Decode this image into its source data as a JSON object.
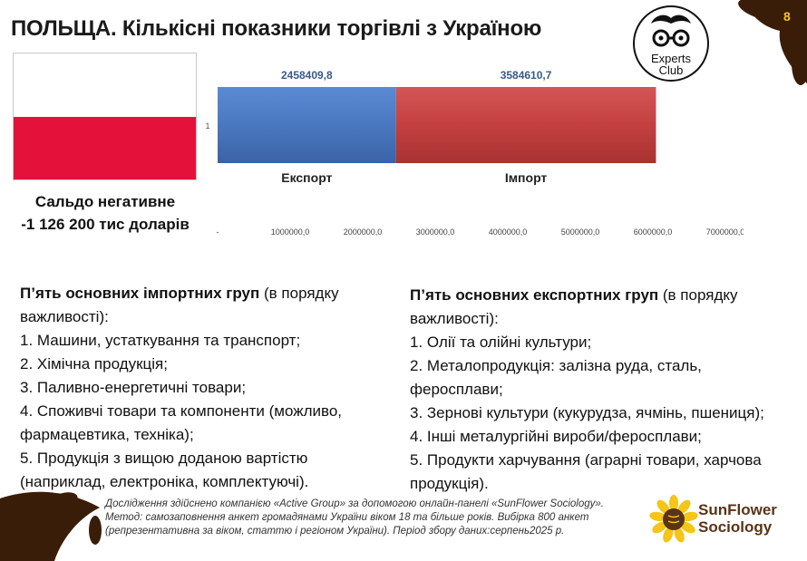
{
  "title": "ПОЛЬЩА. Кількісні показники торгівлі з Україною",
  "page_number": "8",
  "logo": {
    "line1": "Experts",
    "line2": "Club"
  },
  "colors": {
    "export": "#4a78c0",
    "import": "#c44040",
    "flag_red": "#e4123b",
    "brand_brown": "#5a3416",
    "accent_yellow": "#f5c518"
  },
  "saldo": {
    "line1": "Сальдо негативне",
    "line2": "-1 126 200 тис доларів"
  },
  "chart_data": {
    "type": "bar",
    "orientation": "horizontal-stacked",
    "categories": [
      "1"
    ],
    "series": [
      {
        "name": "Експорт",
        "values": [
          2458409.8
        ],
        "label": "2458409,8"
      },
      {
        "name": "Імпорт",
        "values": [
          3584610.7
        ],
        "label": "3584610,7"
      }
    ],
    "xlim": [
      0,
      7000000
    ],
    "xticks": [
      "-",
      "1000000,0",
      "2000000,0",
      "3000000,0",
      "4000000,0",
      "5000000,0",
      "6000000,0",
      "7000000,0"
    ],
    "grid": false
  },
  "import_groups": {
    "heading": "П’ять основних імпортних груп",
    "heading_suffix": " (в порядку важливості):",
    "lines": [
      "1. Машини, устаткування та транспорт;",
      "2. Хімічна продукція;",
      "3. Паливно-енергетичні товари;",
      "4. Споживчі товари та компоненти (можливо,",
      "фармацевтика, техніка);",
      "5. Продукція з вищою доданою вартістю",
      "(наприклад, електроніка, комплектуючі)."
    ]
  },
  "export_groups": {
    "heading": "П’ять основних експортних груп",
    "heading_suffix": " (в порядку важливості):",
    "lines": [
      "1. Олії та олійні культури;",
      "2. Металопродукція: залізна руда, сталь,",
      "феросплави;",
      "3. Зернові культури (кукурудза, ячмінь, пшениця);",
      "4. Інші металургійні вироби/феросплави;",
      "5. Продукти харчування (аграрні товари, харчова",
      "продукція)."
    ]
  },
  "footnote": "Дослідження здійснено компанією «Active Group» за допомогою онлайн-панелі «SunFlower Sociology». Метод: самозаповнення анкет громадянами України віком 18 та більше років. Вибірка 800 анкет (репрезентативна за віком, статтю і регіоном України). Період збору даних:серпень2025 р.",
  "brand": {
    "line1": "SunFlower",
    "line2": "Sociology"
  }
}
